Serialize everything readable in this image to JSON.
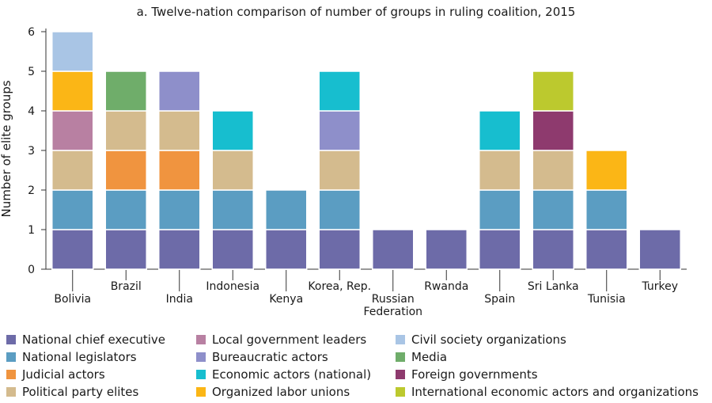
{
  "chart_data": {
    "type": "bar",
    "stacked": true,
    "title": "a. Twelve-nation comparison of number of groups in ruling coalition, 2015",
    "xlabel": "",
    "ylabel": "Number of elite groups",
    "ylim": [
      0,
      6
    ],
    "yticks": [
      "0",
      "1",
      "2",
      "3",
      "4",
      "5",
      "6"
    ],
    "grid": false,
    "legend_position": "bottom",
    "categories": [
      "Bolivia",
      "Brazil",
      "India",
      "Indonesia",
      "Kenya",
      "Korea, Rep.",
      "Russian Federation",
      "Rwanda",
      "Spain",
      "Sri Lanka",
      "Tunisia",
      "Turkey"
    ],
    "category_label_lines": [
      [
        "Bolivia"
      ],
      [
        "Brazil"
      ],
      [
        "India"
      ],
      [
        "Indonesia"
      ],
      [
        "Kenya"
      ],
      [
        "Korea, Rep."
      ],
      [
        "Russian",
        "Federation"
      ],
      [
        "Rwanda"
      ],
      [
        "Spain"
      ],
      [
        "Sri Lanka"
      ],
      [
        "Tunisia"
      ],
      [
        "Turkey"
      ]
    ],
    "series": [
      {
        "name": "National chief executive",
        "color": "#6d6ba8",
        "values": [
          1,
          1,
          1,
          1,
          1,
          1,
          1,
          1,
          1,
          1,
          1,
          1
        ]
      },
      {
        "name": "National legislators",
        "color": "#5b9dc2",
        "values": [
          1,
          1,
          1,
          1,
          1,
          1,
          0,
          0,
          1,
          1,
          1,
          0
        ]
      },
      {
        "name": "Judicial actors",
        "color": "#f0943f",
        "values": [
          0,
          1,
          1,
          0,
          0,
          0,
          0,
          0,
          0,
          0,
          0,
          0
        ]
      },
      {
        "name": "Political party elites",
        "color": "#d4bb8e",
        "values": [
          1,
          1,
          1,
          1,
          0,
          1,
          0,
          0,
          1,
          1,
          0,
          0
        ]
      },
      {
        "name": "Local government leaders",
        "color": "#b880a2",
        "values": [
          1,
          0,
          0,
          0,
          0,
          0,
          0,
          0,
          0,
          0,
          0,
          0
        ]
      },
      {
        "name": "Bureaucratic actors",
        "color": "#8e8fca",
        "values": [
          0,
          0,
          1,
          0,
          0,
          1,
          0,
          0,
          0,
          0,
          0,
          0
        ]
      },
      {
        "name": "Economic actors (national)",
        "color": "#17becf",
        "values": [
          0,
          0,
          0,
          1,
          0,
          1,
          0,
          0,
          1,
          0,
          0,
          0
        ]
      },
      {
        "name": "Organized labor unions",
        "color": "#fbb616",
        "values": [
          1,
          0,
          0,
          0,
          0,
          0,
          0,
          0,
          0,
          0,
          1,
          0
        ]
      },
      {
        "name": "Civil society organizations",
        "color": "#a9c5e5",
        "values": [
          1,
          0,
          0,
          0,
          0,
          0,
          0,
          0,
          0,
          0,
          0,
          0
        ]
      },
      {
        "name": "Media",
        "color": "#6fad6a",
        "values": [
          0,
          1,
          0,
          0,
          0,
          0,
          0,
          0,
          0,
          0,
          0,
          0
        ]
      },
      {
        "name": "Foreign governments",
        "color": "#8e3a6e",
        "values": [
          0,
          0,
          0,
          0,
          0,
          0,
          0,
          0,
          0,
          1,
          0,
          0
        ]
      },
      {
        "name": "International economic actors and organizations",
        "color": "#bcc92e",
        "values": [
          0,
          0,
          0,
          0,
          0,
          0,
          0,
          0,
          0,
          1,
          0,
          0
        ]
      }
    ]
  }
}
